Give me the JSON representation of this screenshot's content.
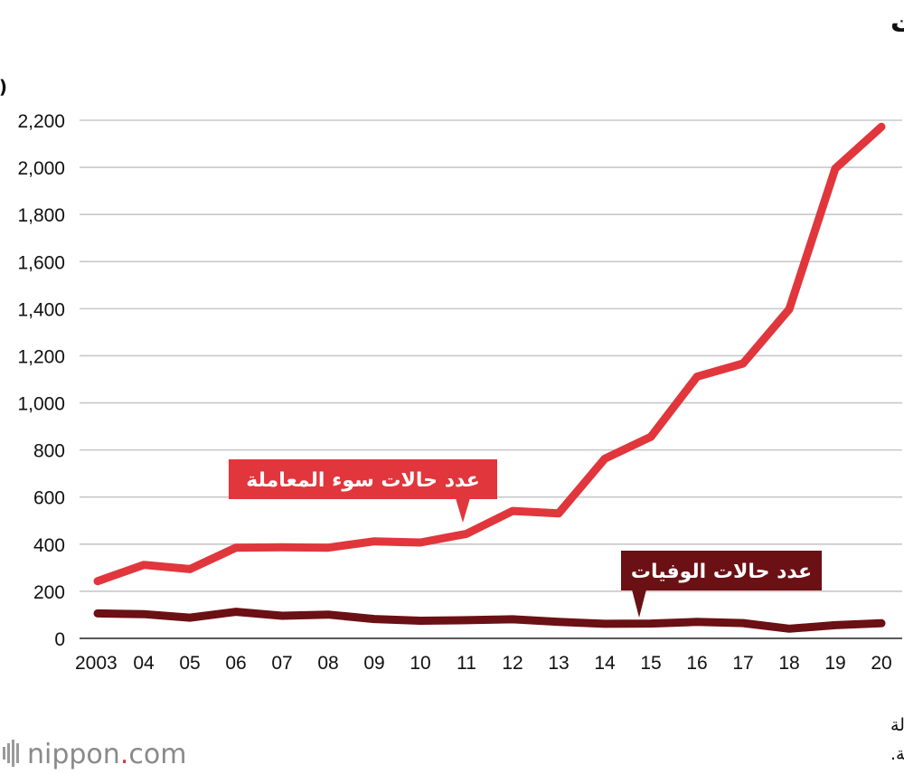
{
  "chart_data": {
    "type": "line",
    "title": "حالات الاعتداء على الأطفال والوفيات",
    "ylabel": "(الأطفال)",
    "xlabel": "",
    "ylim": [
      0,
      2200
    ],
    "yticks": [
      "0",
      "200",
      "400",
      "600",
      "800",
      "1,000",
      "1,200",
      "1,400",
      "1,600",
      "1,800",
      "2,000",
      "2,200"
    ],
    "ytick_values": [
      0,
      200,
      400,
      600,
      800,
      1000,
      1200,
      1400,
      1600,
      1800,
      2000,
      2200
    ],
    "categories": [
      "2003",
      "04",
      "05",
      "06",
      "07",
      "08",
      "09",
      "10",
      "11",
      "12",
      "13",
      "14",
      "15",
      "16",
      "17",
      "18",
      "19",
      "20"
    ],
    "grid": true,
    "series": [
      {
        "name": "عدد حالات سوء المعاملة",
        "color": "#e1363c",
        "values": [
          243,
          312,
          294,
          385,
          387,
          385,
          412,
          407,
          444,
          541,
          531,
          763,
          856,
          1111,
          1167,
          1397,
          1995,
          2172
        ]
      },
      {
        "name": "عدد حالات الوفيات",
        "color": "#6b1014",
        "values": [
          106,
          103,
          88,
          113,
          96,
          101,
          82,
          75,
          77,
          81,
          70,
          62,
          63,
          70,
          65,
          41,
          56,
          64
        ]
      }
    ]
  },
  "source": {
    "line1": "تم جمع البيانات بواسطة Nippon.com بناءً على بيانات من وكالة",
    "line2": "الشرطة الوطنية."
  },
  "logo": {
    "name": "nippon",
    "suffix": "com",
    "dot_color": "#e63339"
  }
}
